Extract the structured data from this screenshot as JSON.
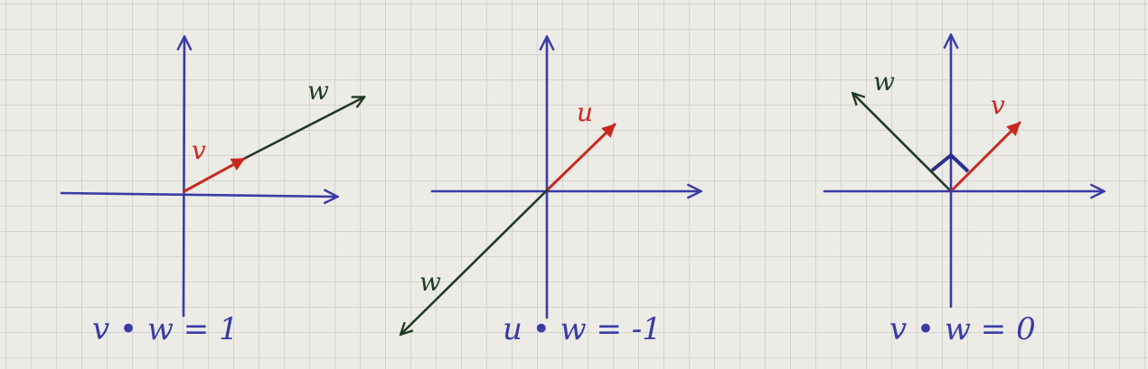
{
  "colors": {
    "axis": "#3a3ba6",
    "vector_v": "#c8291f",
    "vector_w": "#1f3b25",
    "equation": "#3a3ba6"
  },
  "panels": [
    {
      "v_label": "v",
      "w_label": "w",
      "equation": "v • w = 1"
    },
    {
      "v_label": "u",
      "w_label": "w",
      "equation": "u • w = -1"
    },
    {
      "v_label": "v",
      "w_label": "w",
      "equation": "v • w = 0"
    }
  ]
}
